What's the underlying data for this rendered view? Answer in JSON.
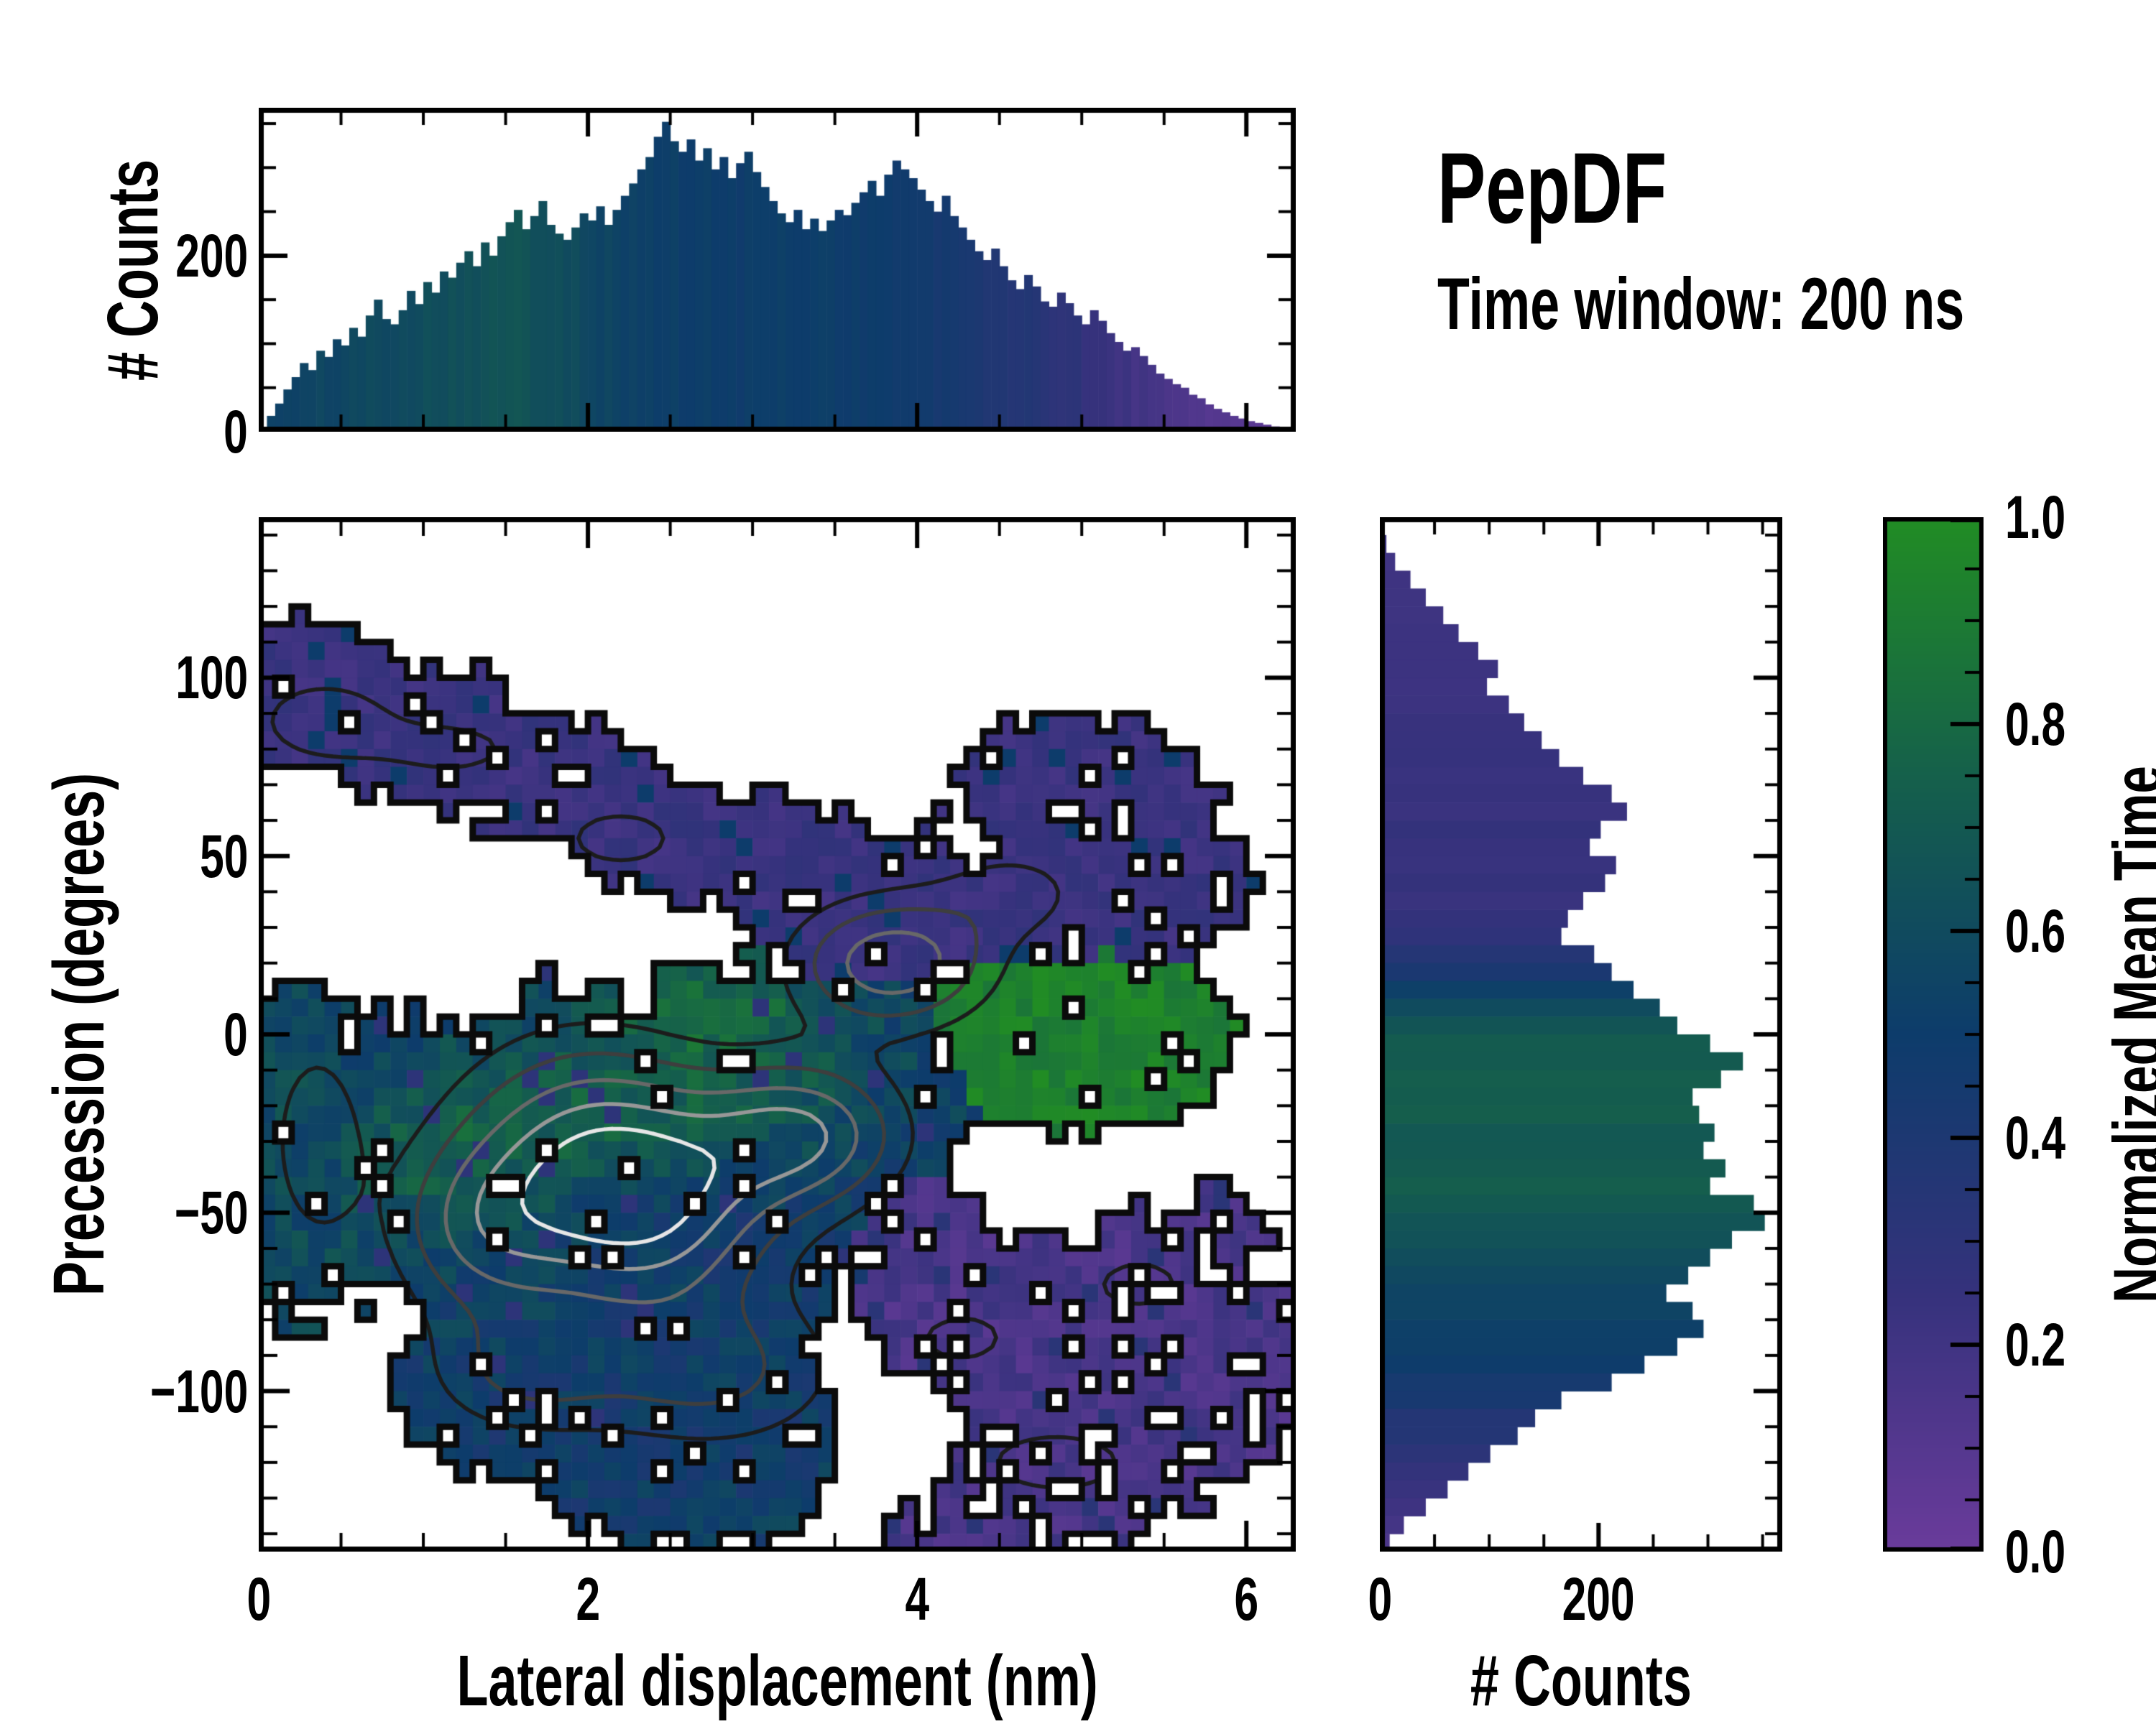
{
  "annotations": {
    "title": "PepDF",
    "subtitle": "Time window: 200 ns"
  },
  "colormap": {
    "label": "Normalized Mean Time",
    "stops": [
      [
        0.0,
        "#6a3b9b"
      ],
      [
        0.25,
        "#35327c"
      ],
      [
        0.5,
        "#0d3c6b"
      ],
      [
        0.75,
        "#15604b"
      ],
      [
        1.0,
        "#218c24"
      ]
    ]
  },
  "axis_color": "#000000",
  "background": "#ffffff",
  "chart_data": [
    {
      "id": "top_marginal",
      "type": "bar",
      "orientation": "vertical",
      "ylabel": "# Counts",
      "x_range": [
        0,
        6.3
      ],
      "ylim": [
        0,
        368
      ],
      "bins": 126,
      "bin_width_nm": 0.05,
      "ytick_labels": [
        "0",
        "200"
      ],
      "ytick_values": [
        0,
        200
      ],
      "ytick_minor_step": 50,
      "xtick_major": [
        0,
        2,
        4,
        6
      ],
      "xtick_minor_step": 0.5,
      "values": [
        5,
        18,
        32,
        48,
        62,
        78,
        70,
        92,
        85,
        105,
        98,
        118,
        108,
        132,
        150,
        128,
        122,
        138,
        160,
        145,
        170,
        158,
        182,
        175,
        192,
        205,
        188,
        215,
        200,
        222,
        238,
        252,
        230,
        245,
        262,
        235,
        225,
        218,
        232,
        248,
        240,
        256,
        235,
        252,
        268,
        282,
        298,
        312,
        335,
        352,
        330,
        318,
        332,
        308,
        322,
        298,
        312,
        288,
        305,
        318,
        295,
        278,
        262,
        248,
        238,
        252,
        230,
        242,
        228,
        240,
        252,
        246,
        260,
        272,
        285,
        268,
        292,
        308,
        298,
        288,
        275,
        262,
        250,
        268,
        245,
        232,
        218,
        205,
        195,
        208,
        188,
        172,
        162,
        178,
        165,
        148,
        142,
        158,
        146,
        132,
        122,
        138,
        126,
        112,
        102,
        92,
        96,
        86,
        76,
        66,
        60,
        54,
        50,
        42,
        38,
        31,
        26,
        22,
        18,
        15,
        12,
        10,
        8,
        6,
        5,
        4
      ],
      "color_value_profile": [
        [
          0,
          0.52
        ],
        [
          0.4,
          0.56
        ],
        [
          0.8,
          0.6
        ],
        [
          1.2,
          0.64
        ],
        [
          1.6,
          0.66
        ],
        [
          1.9,
          0.62
        ],
        [
          2.1,
          0.56
        ],
        [
          2.4,
          0.52
        ],
        [
          2.9,
          0.5
        ],
        [
          3.4,
          0.52
        ],
        [
          3.8,
          0.49
        ],
        [
          4.1,
          0.45
        ],
        [
          4.5,
          0.38
        ],
        [
          4.9,
          0.3
        ],
        [
          5.2,
          0.22
        ],
        [
          5.5,
          0.15
        ],
        [
          5.8,
          0.11
        ],
        [
          6.1,
          0.07
        ],
        [
          6.3,
          0.06
        ]
      ]
    },
    {
      "id": "joint_heatmap",
      "type": "heatmap",
      "xlabel": "Lateral displacement (nm)",
      "ylabel": "Precession (degrees)",
      "xlim": [
        0,
        6.3
      ],
      "ylim": [
        -145,
        145
      ],
      "xtick_labels": [
        "0",
        "2",
        "4",
        "6"
      ],
      "xtick_values": [
        0,
        2,
        4,
        6
      ],
      "xtick_minor_step": 0.5,
      "ytick_labels": [
        "100",
        "50",
        "0",
        "−50",
        "−100"
      ],
      "ytick_values": [
        100,
        50,
        0,
        -50,
        -100
      ],
      "ytick_minor_step": 10,
      "grid": {
        "nx": 63,
        "ny": 58
      },
      "seed": 42,
      "occupancy_shapes": [
        [
          0.3,
          95,
          0.65,
          22,
          "upper"
        ],
        [
          1.0,
          85,
          0.7,
          20,
          "upper"
        ],
        [
          1.7,
          72,
          0.7,
          18,
          "upper"
        ],
        [
          2.4,
          58,
          0.6,
          16,
          "upper"
        ],
        [
          3.1,
          48,
          0.7,
          18,
          "upper"
        ],
        [
          3.75,
          35,
          0.75,
          22,
          "upper"
        ],
        [
          4.75,
          35,
          0.6,
          18,
          "upper"
        ],
        [
          5.45,
          45,
          0.55,
          24,
          "upper"
        ],
        [
          5.0,
          68,
          0.8,
          20,
          "upper"
        ],
        [
          0.25,
          -30,
          0.45,
          48,
          "left"
        ],
        [
          0.9,
          -35,
          0.8,
          42,
          "central"
        ],
        [
          1.8,
          -45,
          1.0,
          55,
          "central"
        ],
        [
          2.7,
          -45,
          1.0,
          58,
          "central"
        ],
        [
          3.3,
          -30,
          0.8,
          45,
          "central"
        ],
        [
          3.0,
          -12,
          0.9,
          33,
          "central"
        ],
        [
          3.8,
          -15,
          0.6,
          28,
          "central"
        ],
        [
          2.4,
          -105,
          1.1,
          32,
          "central"
        ],
        [
          1.5,
          -98,
          0.7,
          26,
          "central"
        ],
        [
          2.7,
          -128,
          0.8,
          16,
          "central"
        ],
        [
          4.8,
          0,
          0.78,
          27,
          "green"
        ],
        [
          5.45,
          -2,
          0.5,
          21,
          "green"
        ],
        [
          4.15,
          -75,
          0.55,
          24,
          "purple"
        ],
        [
          4.8,
          -85,
          0.7,
          30,
          "purple"
        ],
        [
          5.5,
          -75,
          0.6,
          28,
          "purple"
        ],
        [
          5.9,
          -92,
          0.45,
          28,
          "purple"
        ],
        [
          4.95,
          -122,
          0.85,
          20,
          "purple"
        ],
        [
          4.35,
          -140,
          0.5,
          12,
          "purple"
        ],
        [
          5.75,
          -55,
          0.4,
          13,
          "purple"
        ],
        [
          3.95,
          -55,
          0.45,
          18,
          "purple"
        ]
      ],
      "value_rules": {
        "upper": 0.23,
        "left": 0.6,
        "green": 0.94,
        "purple": 0.11,
        "central_base": 0.52
      },
      "value_fields": [
        [
          2.0,
          -25,
          1.1,
          28,
          0.2
        ],
        [
          1.0,
          -38,
          0.7,
          26,
          0.14
        ],
        [
          3.05,
          -10,
          0.8,
          22,
          0.12
        ],
        [
          2.75,
          10,
          0.7,
          16,
          0.22
        ],
        [
          2.55,
          -52,
          1.0,
          18,
          -0.1
        ],
        [
          2.2,
          -112,
          1.5,
          28,
          -0.06
        ]
      ],
      "hole_prob": {
        "upper": 0.09,
        "left": 0.05,
        "central": 0.05,
        "green": 0.06,
        "purple": 0.15
      },
      "contours": {
        "gaussians": [
          [
            2.35,
            -50,
            0.75,
            28,
            1.0
          ],
          [
            3.3,
            -28,
            0.6,
            20,
            0.92
          ],
          [
            2.0,
            -28,
            0.8,
            30,
            0.72
          ],
          [
            1.35,
            -55,
            0.55,
            25,
            0.62
          ],
          [
            2.75,
            -95,
            0.8,
            22,
            0.52
          ],
          [
            1.6,
            -95,
            0.6,
            18,
            0.45
          ],
          [
            0.35,
            -30,
            0.3,
            30,
            0.42
          ],
          [
            3.85,
            20,
            0.6,
            18,
            0.88
          ],
          [
            0.4,
            88,
            0.5,
            14,
            0.4
          ],
          [
            1.2,
            80,
            0.5,
            10,
            0.33
          ],
          [
            2.2,
            55,
            0.5,
            12,
            0.35
          ],
          [
            4.6,
            40,
            0.5,
            14,
            0.33
          ],
          [
            4.85,
            -120,
            0.6,
            12,
            0.38
          ],
          [
            5.35,
            -70,
            0.45,
            12,
            0.33
          ],
          [
            4.3,
            -85,
            0.5,
            14,
            0.3
          ]
        ],
        "levels": [
          0.18,
          0.32,
          0.48,
          0.64,
          0.8
        ],
        "colors": [
          "#1c1c1c",
          "#3e3e3e",
          "#686868",
          "#979797",
          "#e6e6e6"
        ],
        "outline_color": "#0b0b0b"
      }
    },
    {
      "id": "right_marginal",
      "type": "bar",
      "orientation": "horizontal",
      "xlabel": "# Counts",
      "y_range": [
        145,
        -145
      ],
      "xlim": [
        0,
        368
      ],
      "bins": 58,
      "bin_width_deg": 5,
      "xtick_labels": [
        "0",
        "200"
      ],
      "xtick_values": [
        0,
        200
      ],
      "xtick_minor_step": 50,
      "ytick_minor_step": 10,
      "values": [
        2,
        6,
        14,
        28,
        42,
        58,
        72,
        90,
        108,
        98,
        118,
        132,
        148,
        164,
        186,
        212,
        226,
        202,
        192,
        216,
        206,
        186,
        172,
        166,
        196,
        212,
        232,
        256,
        272,
        302,
        332,
        312,
        286,
        292,
        306,
        296,
        316,
        302,
        342,
        352,
        322,
        302,
        282,
        262,
        286,
        296,
        272,
        242,
        212,
        166,
        142,
        126,
        101,
        81,
        62,
        42,
        22,
        9
      ],
      "color_value_profile": [
        [
          145,
          0.2
        ],
        [
          110,
          0.22
        ],
        [
          70,
          0.24
        ],
        [
          35,
          0.25
        ],
        [
          25,
          0.3
        ],
        [
          18,
          0.42
        ],
        [
          10,
          0.55
        ],
        [
          3,
          0.66
        ],
        [
          -5,
          0.72
        ],
        [
          -15,
          0.74
        ],
        [
          -30,
          0.7
        ],
        [
          -42,
          0.72
        ],
        [
          -52,
          0.66
        ],
        [
          -62,
          0.62
        ],
        [
          -75,
          0.56
        ],
        [
          -88,
          0.5
        ],
        [
          -100,
          0.44
        ],
        [
          -112,
          0.34
        ],
        [
          -124,
          0.26
        ],
        [
          -134,
          0.18
        ],
        [
          -145,
          0.12
        ]
      ]
    },
    {
      "id": "colorbar",
      "type": "colorbar",
      "label": "Normalized Mean Time",
      "tick_labels": [
        "1.0",
        "0.8",
        "0.6",
        "0.4",
        "0.2",
        "0.0"
      ],
      "tick_values": [
        1.0,
        0.8,
        0.6,
        0.4,
        0.2,
        0.0
      ],
      "minor_step": 0.05
    }
  ]
}
